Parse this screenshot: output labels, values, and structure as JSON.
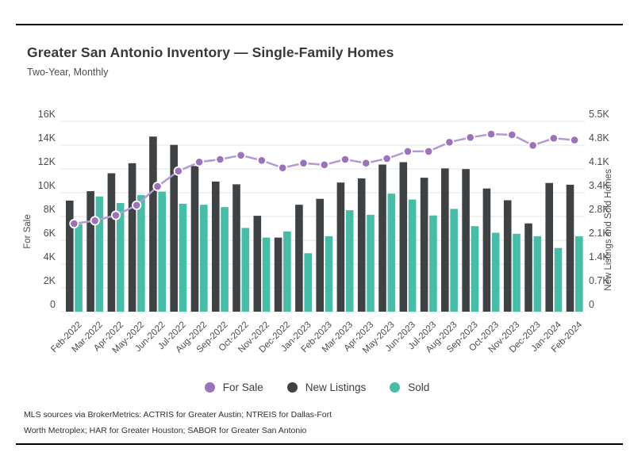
{
  "header": {
    "title": "Greater San Antonio Inventory — Single-Family Homes",
    "subtitle": "Two-Year, Monthly"
  },
  "chart_data": {
    "type": "combo-bar-line",
    "title": "Greater San Antonio Inventory — Single-Family Homes",
    "subtitle": "Two-Year, Monthly",
    "grid": true,
    "legend_position": "bottom",
    "categories": [
      "Feb-2022",
      "Mar-2022",
      "Apr-2022",
      "May-2022",
      "Jun-2022",
      "Jul-2022",
      "Aug-2022",
      "Sep-2022",
      "Oct-2022",
      "Nov-2022",
      "Dec-2022",
      "Jan-2023",
      "Feb-2023",
      "Mar-2023",
      "Apr-2023",
      "May-2023",
      "Jun-2023",
      "Jul-2023",
      "Aug-2023",
      "Sep-2023",
      "Oct-2023",
      "Nov-2023",
      "Dec-2023",
      "Jan-2024",
      "Feb-2024"
    ],
    "series": [
      {
        "name": "For Sale",
        "type": "line",
        "axis": "left",
        "color": "#9c72b8",
        "line_color": "#b59ad1",
        "values": [
          7400,
          7650,
          8100,
          8950,
          10530,
          11820,
          12580,
          12800,
          13150,
          12710,
          12090,
          12490,
          12350,
          12800,
          12490,
          12870,
          13470,
          13470,
          14250,
          14650,
          14930,
          14870,
          13980,
          14580,
          14430
        ]
      },
      {
        "name": "New Listings",
        "type": "bar",
        "axis": "right",
        "color": "#3e4245",
        "values": [
          3210,
          3480,
          4000,
          4290,
          5060,
          4820,
          4210,
          3760,
          3680,
          2770,
          2140,
          3090,
          3260,
          3730,
          3850,
          4250,
          4320,
          3870,
          4140,
          4120,
          3560,
          3220,
          2550,
          3720,
          3670
        ]
      },
      {
        "name": "Sold",
        "type": "bar",
        "axis": "right",
        "color": "#47bca6",
        "values": [
          2530,
          3330,
          3140,
          3370,
          3470,
          3120,
          3090,
          3020,
          2420,
          2140,
          2320,
          1690,
          2180,
          2930,
          2800,
          3410,
          3240,
          2780,
          2970,
          2470,
          2280,
          2250,
          2180,
          1840,
          2180
        ]
      }
    ],
    "left_axis": {
      "label": "For Sale",
      "min": 0,
      "max": 16000,
      "ticks": [
        "0",
        "2K",
        "4K",
        "6K",
        "8K",
        "10K",
        "12K",
        "14K",
        "16K"
      ]
    },
    "right_axis": {
      "label": "New Listings and Sold Homes",
      "min": 0,
      "max": 5500,
      "ticks": [
        "0",
        "0.7K",
        "1.4K",
        "2.1K",
        "2.8K",
        "3.4K",
        "4.1K",
        "4.8K",
        "5.5K"
      ]
    },
    "colors": {
      "grid": "#e3e3e3",
      "axis_text": "#4c4c4c",
      "background": "#ffffff"
    }
  },
  "footer": {
    "line1": "MLS sources via BrokerMetrics: ACTRIS for Greater Austin; NTREIS for Dallas-Fort",
    "line2": "Worth Metroplex; HAR for Greater Houston; SABOR for Greater San Antonio"
  }
}
